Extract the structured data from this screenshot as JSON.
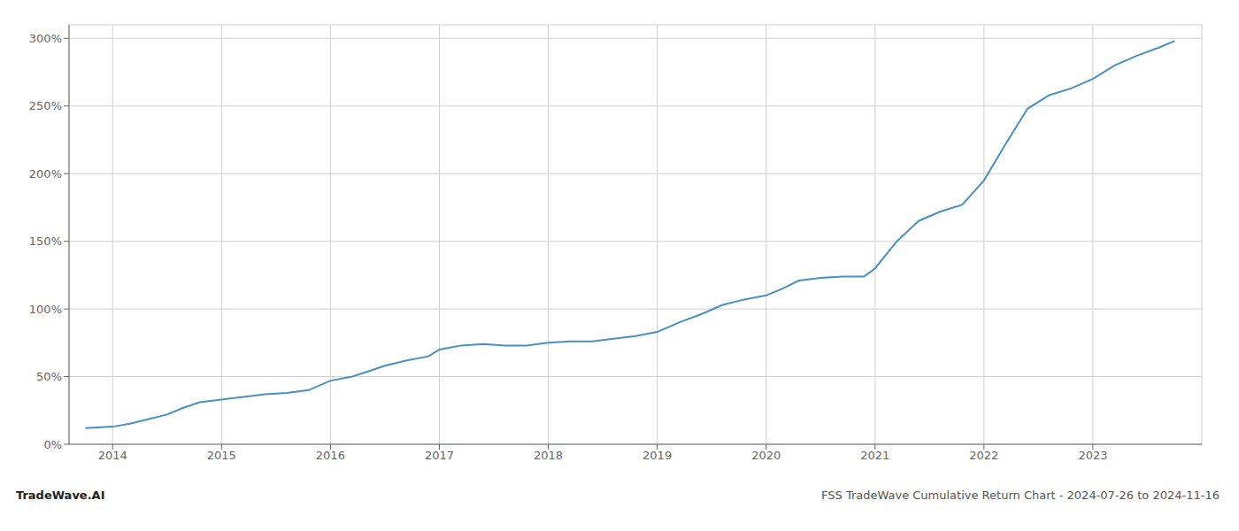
{
  "chart_data": {
    "type": "line",
    "title": "FSS TradeWave Cumulative Return Chart - 2024-07-26 to 2024-11-16",
    "annotations": [
      "TradeWave.AI"
    ],
    "color": "#4a90c4",
    "grid": true,
    "x": [
      2013.75,
      2014.0,
      2014.15,
      2014.3,
      2014.5,
      2014.65,
      2014.8,
      2015.0,
      2015.2,
      2015.4,
      2015.6,
      2015.8,
      2016.0,
      2016.2,
      2016.35,
      2016.5,
      2016.7,
      2016.9,
      2017.0,
      2017.2,
      2017.4,
      2017.6,
      2017.8,
      2018.0,
      2018.2,
      2018.4,
      2018.6,
      2018.8,
      2019.0,
      2019.2,
      2019.4,
      2019.6,
      2019.8,
      2020.0,
      2020.15,
      2020.3,
      2020.5,
      2020.7,
      2020.9,
      2021.0,
      2021.2,
      2021.4,
      2021.6,
      2021.8,
      2022.0,
      2022.2,
      2022.4,
      2022.6,
      2022.8,
      2023.0,
      2023.2,
      2023.4,
      2023.6,
      2023.75
    ],
    "values": [
      12,
      13,
      15,
      18,
      22,
      27,
      31,
      33,
      35,
      37,
      38,
      40,
      47,
      50,
      54,
      58,
      62,
      65,
      70,
      73,
      74,
      73,
      73,
      75,
      76,
      76,
      78,
      80,
      83,
      90,
      96,
      103,
      107,
      110,
      115,
      121,
      123,
      124,
      124,
      130,
      150,
      165,
      172,
      177,
      195,
      222,
      248,
      258,
      263,
      270,
      280,
      287,
      293,
      298
    ],
    "xlim": [
      2013.6,
      2024.0
    ],
    "xticks": [
      2014,
      2015,
      2016,
      2017,
      2018,
      2019,
      2020,
      2021,
      2022,
      2023
    ],
    "ylim": [
      0,
      310
    ],
    "yticks": [
      {
        "value": 0,
        "label": "0%"
      },
      {
        "value": 50,
        "label": "50%"
      },
      {
        "value": 100,
        "label": "100%"
      },
      {
        "value": 150,
        "label": "150%"
      },
      {
        "value": 200,
        "label": "200%"
      },
      {
        "value": 250,
        "label": "250%"
      },
      {
        "value": 300,
        "label": "300%"
      }
    ]
  }
}
